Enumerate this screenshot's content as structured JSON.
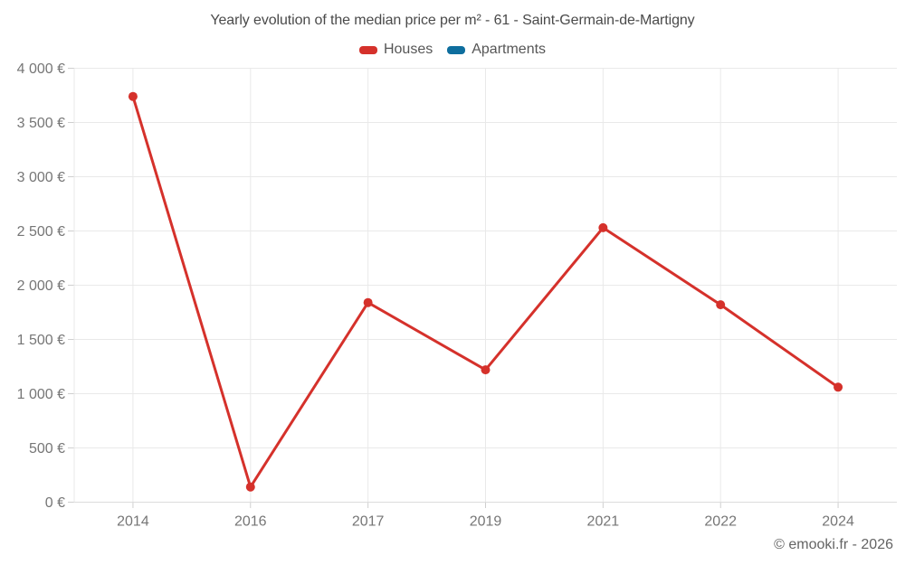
{
  "copyright": "© emooki.fr - 2026",
  "chart_data": {
    "type": "line",
    "title": "Yearly evolution of the median price per m² - 61 - Saint-Germain-de-Martigny",
    "categories": [
      "2014",
      "2016",
      "2017",
      "2019",
      "2021",
      "2022",
      "2024"
    ],
    "series": [
      {
        "name": "Houses",
        "color": "#d5312b",
        "values": [
          3740,
          140,
          1840,
          1220,
          2530,
          1820,
          1060
        ]
      },
      {
        "name": "Apartments",
        "color": "#0e6e9e",
        "values": []
      }
    ],
    "xlabel": "",
    "ylabel": "",
    "ylim": [
      0,
      4000
    ],
    "ytick_step": 500,
    "ytick_labels": [
      "0 €",
      "500 €",
      "1 000 €",
      "1 500 €",
      "2 000 €",
      "2 500 €",
      "3 000 €",
      "3 500 €",
      "4 000 €"
    ],
    "grid": true,
    "legend_position": "top",
    "colors": {
      "grid_line": "#e9e9e9",
      "axis_line": "#dcdcdc",
      "tick_mark": "#cfcfcf",
      "tick_label": "#767676",
      "title_text": "#4a4a4a",
      "background": "#ffffff"
    }
  }
}
